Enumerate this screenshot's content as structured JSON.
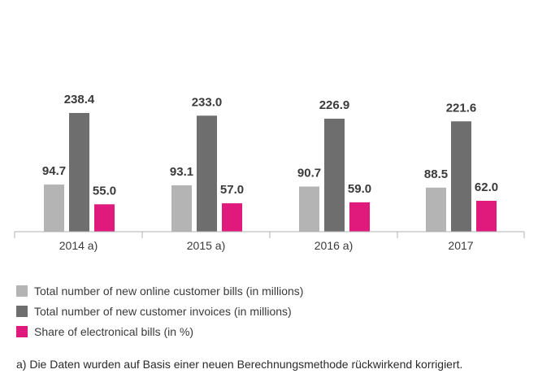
{
  "chart_data": {
    "type": "bar",
    "categories": [
      "2014 a)",
      "2015 a)",
      "2016 a)",
      "2017"
    ],
    "series": [
      {
        "name": "Total number of new online customer bills (in millions)",
        "values": [
          94.7,
          93.1,
          90.7,
          88.5
        ],
        "color": "#b4b4b4"
      },
      {
        "name": "Total number of new customer invoices (in millions)",
        "values": [
          238.4,
          233.0,
          226.9,
          221.6
        ],
        "color": "#6e6e6e"
      },
      {
        "name": "Share of electronical bills (in %)",
        "values": [
          55.0,
          57.0,
          59.0,
          62.0
        ],
        "color": "#e0197d"
      }
    ],
    "grid": false,
    "legend_position": "bottom-left"
  },
  "footnote": "a) Die Daten wurden auf Basis einer neuen Berechnungsmethode rückwirkend korrigiert."
}
